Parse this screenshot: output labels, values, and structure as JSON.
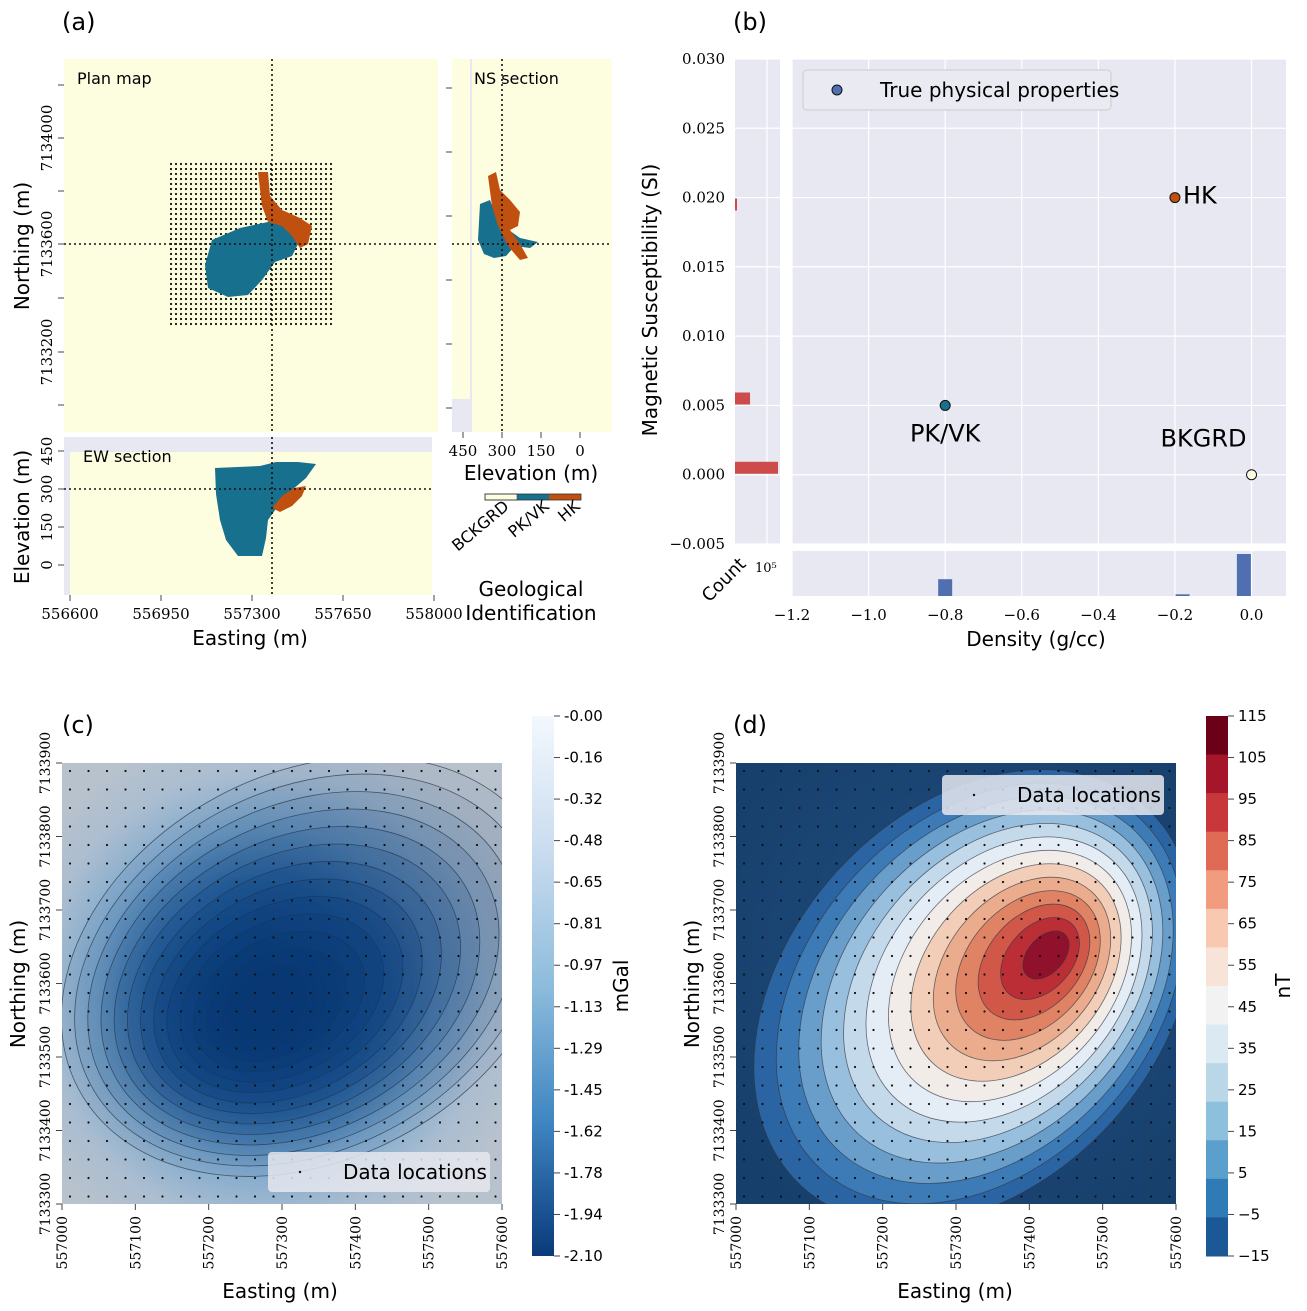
{
  "panel_labels": [
    "(a)",
    "(b)",
    "(c)",
    "(d)"
  ],
  "colors": {
    "background_unit": "#fdfde0",
    "pkvk": "#16708e",
    "hk": "#c0500f",
    "axes_bg": "#e8e8f2",
    "red_bar": "#cd4b4b",
    "blue_bar": "#4f6fb0"
  },
  "panel_a": {
    "plan": {
      "label": "Plan map",
      "xlabel": "",
      "ylabel": "Northing (m)",
      "yticks": [
        "7134000",
        "7133600",
        "7133200"
      ]
    },
    "ns": {
      "label": "NS section",
      "xlabel": "Elevation (m)",
      "xticks": [
        "450",
        "300",
        "150",
        "0"
      ]
    },
    "ew": {
      "label": "EW section",
      "xlabel": "Easting (m)",
      "ylabel": "Elevation (m)",
      "xticks": [
        "556600",
        "556950",
        "557300",
        "557650",
        "558000"
      ],
      "yticks": [
        "450",
        "300",
        "150",
        "0"
      ]
    },
    "legend": {
      "categories": [
        "BCKGRD",
        "PK/VK",
        "HK"
      ],
      "title_line1": "Geological",
      "title_line2": "Identification"
    }
  },
  "chart_data": [
    {
      "type": "scatter",
      "panel": "b",
      "xlabel": "Density (g/cc)",
      "ylabel": "Magnetic Susceptibility (SI)",
      "xlim": [
        -1.2,
        0.09
      ],
      "ylim": [
        -0.005,
        0.03
      ],
      "xticks": [
        "−1.2",
        "−1.0",
        "−0.8",
        "−0.6",
        "−0.4",
        "−0.2",
        "0.0"
      ],
      "yticks": [
        "0.030",
        "0.025",
        "0.020",
        "0.015",
        "0.010",
        "0.005",
        "0.000",
        "−0.005"
      ],
      "legend": "True physical properties",
      "points": [
        {
          "name": "HK",
          "x": -0.2,
          "y": 0.02,
          "color": "#c0500f"
        },
        {
          "name": "PK/VK",
          "x": -0.8,
          "y": 0.005,
          "color": "#16708e"
        },
        {
          "name": "BKGRD",
          "x": 0.0,
          "y": 0.0,
          "color": "#fdfde0"
        }
      ],
      "count_label": "Count",
      "count_tick": "10⁵",
      "density_hist": [
        {
          "x": -0.8,
          "rel": 0.4
        },
        {
          "x": -0.18,
          "rel": 0.04
        },
        {
          "x": -0.02,
          "rel": 1.0
        }
      ],
      "susc_hist": [
        {
          "y": 0.0005,
          "rel": 1.0
        },
        {
          "y": 0.0055,
          "rel": 0.35
        },
        {
          "y": 0.0195,
          "rel": 0.04
        }
      ]
    },
    {
      "type": "heatmap",
      "panel": "c",
      "xlabel": "Easting (m)",
      "ylabel": "Northing (m)",
      "xticks": [
        "557000",
        "557100",
        "557200",
        "557300",
        "557400",
        "557500",
        "557600"
      ],
      "yticks": [
        "7133300",
        "7133400",
        "7133500",
        "7133600",
        "7133700",
        "7133800",
        "7133900"
      ],
      "legend": "Data locations",
      "colorbar_label": "mGal",
      "colorbar_ticks": [
        "-0.00",
        "-0.16",
        "-0.32",
        "-0.48",
        "-0.65",
        "-0.81",
        "-0.97",
        "-1.13",
        "-1.29",
        "-1.45",
        "-1.62",
        "-1.78",
        "-1.94",
        "-2.10"
      ]
    },
    {
      "type": "heatmap",
      "panel": "d",
      "xlabel": "Easting (m)",
      "ylabel": "Northing (m)",
      "xticks": [
        "557000",
        "557100",
        "557200",
        "557300",
        "557400",
        "557500",
        "557600"
      ],
      "yticks": [
        "7133300",
        "7133400",
        "7133500",
        "7133600",
        "7133700",
        "7133800",
        "7133900"
      ],
      "legend": "Data locations",
      "colorbar_label": "nT",
      "colorbar_ticks": [
        "115",
        "105",
        "95",
        "85",
        "75",
        "65",
        "55",
        "45",
        "35",
        "25",
        "15",
        "5",
        "−5",
        "−15"
      ]
    }
  ]
}
